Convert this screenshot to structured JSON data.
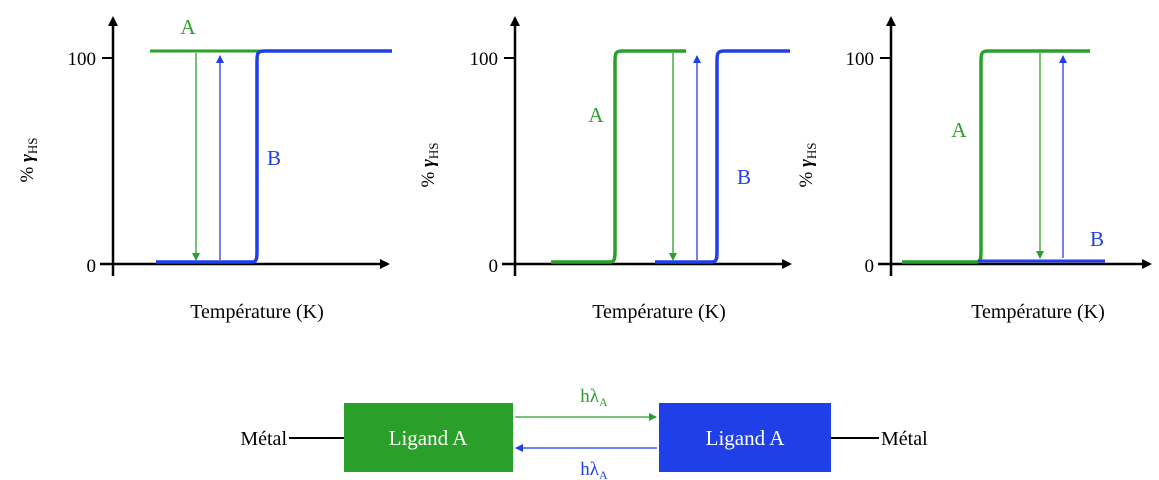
{
  "colors": {
    "A": "#2aa02a",
    "B": "#1f3fe8",
    "axis": "#000000"
  },
  "panels": [
    {
      "y_ticks": [
        "100",
        "0"
      ],
      "y_label_prefix": "% ",
      "y_label_gamma": "γ",
      "y_label_sub": "HS",
      "x_label": "Température (K)",
      "curve_labels": {
        "A": "A",
        "B": "B"
      }
    },
    {
      "y_ticks": [
        "100",
        "0"
      ],
      "y_label_prefix": "% ",
      "y_label_gamma": "γ",
      "y_label_sub": "HS",
      "x_label": "Température (K)",
      "curve_labels": {
        "A": "A",
        "B": "B"
      }
    },
    {
      "y_ticks": [
        "100",
        "0"
      ],
      "y_label_prefix": "% ",
      "y_label_gamma": "γ",
      "y_label_sub": "HS",
      "x_label": "Température (K)",
      "curve_labels": {
        "A": "A",
        "B": "B"
      }
    }
  ],
  "scheme": {
    "left_metal": "Métal",
    "right_metal": "Métal",
    "left_box": "Ligand A",
    "right_box": "Ligand A",
    "arrow_top_main": "hλ",
    "arrow_top_sub": "A",
    "arrow_bottom_main": "hλ",
    "arrow_bottom_sub": "A"
  }
}
